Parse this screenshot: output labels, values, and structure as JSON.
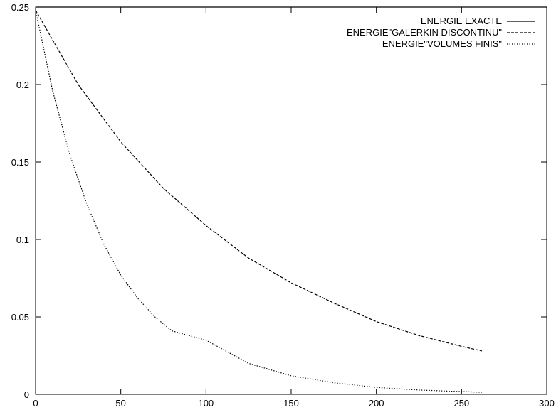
{
  "chart_data": {
    "type": "line",
    "title": "",
    "xlabel": "",
    "ylabel": "",
    "xlim": [
      0,
      300
    ],
    "ylim": [
      0,
      0.25
    ],
    "xticks": [
      0,
      50,
      100,
      150,
      200,
      250,
      300
    ],
    "yticks": [
      0,
      0.05,
      0.1,
      0.15,
      0.2,
      0.25
    ],
    "xtick_labels": [
      "0",
      "50",
      "100",
      "150",
      "200",
      "250",
      "300"
    ],
    "ytick_labels": [
      "0",
      "0.05",
      "0.1",
      "0.15",
      "0.2",
      "0.25"
    ],
    "grid": false,
    "legend_position": "top-right",
    "series": [
      {
        "name": "ENERGIE EXACTE",
        "style": "solid",
        "x": [
          0,
          300
        ],
        "y": [
          0.25,
          0.25
        ]
      },
      {
        "name": "ENERGIE\"GALERKIN DISCONTINU\"",
        "style": "dashed",
        "x": [
          0,
          25,
          50,
          75,
          100,
          125,
          150,
          175,
          200,
          225,
          250,
          262
        ],
        "y": [
          0.248,
          0.2,
          0.163,
          0.133,
          0.109,
          0.088,
          0.072,
          0.059,
          0.047,
          0.038,
          0.031,
          0.028
        ]
      },
      {
        "name": "ENERGIE\"VOLUMES FINIS\"",
        "style": "dotted",
        "x": [
          0,
          10,
          20,
          30,
          40,
          50,
          60,
          70,
          80,
          100,
          125,
          150,
          175,
          200,
          225,
          250,
          262
        ],
        "y": [
          0.248,
          0.196,
          0.155,
          0.123,
          0.097,
          0.077,
          0.062,
          0.05,
          0.041,
          0.035,
          0.02,
          0.012,
          0.0075,
          0.0045,
          0.0028,
          0.0018,
          0.0014
        ]
      }
    ]
  }
}
